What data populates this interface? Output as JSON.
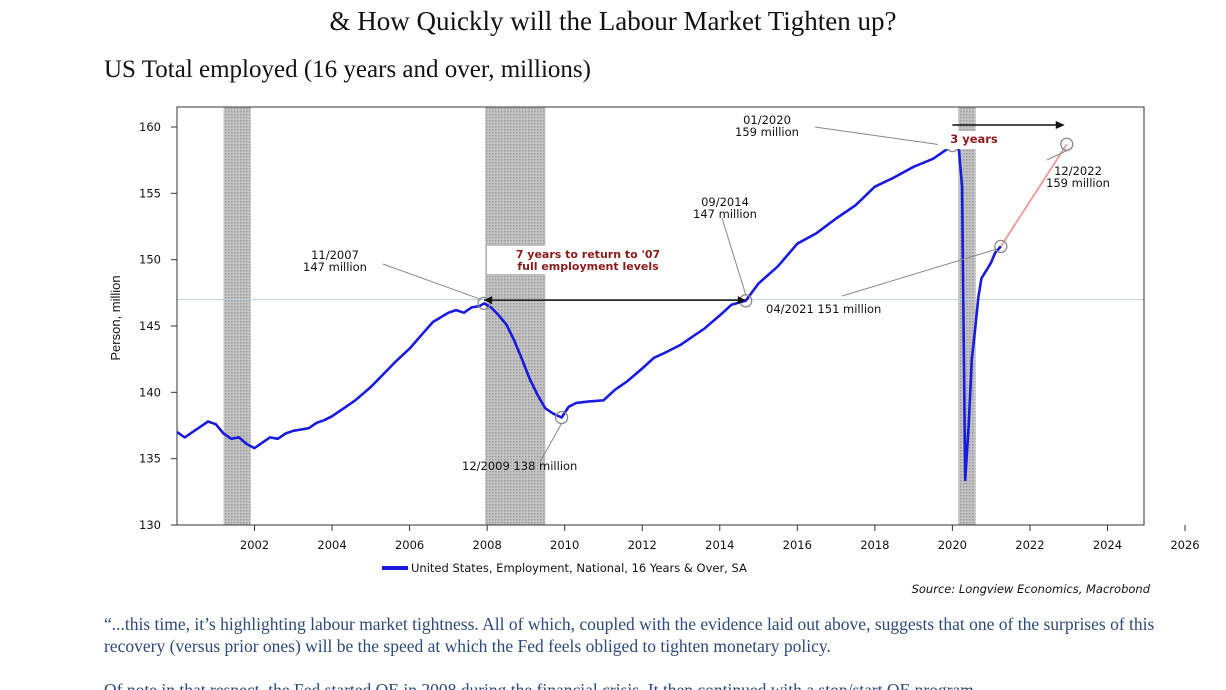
{
  "header": {
    "title_line": "& How Quickly will the Labour Market Tighten up?",
    "subtitle": "US Total employed (16 years and over, millions)"
  },
  "chart_data": {
    "type": "line",
    "title": "US Total employed (16 years and over, millions)",
    "ylabel": "Person, million",
    "xlim": [
      2000.0,
      2026.0
    ],
    "ylim": [
      130,
      160
    ],
    "yticks": [
      130,
      135,
      140,
      145,
      150,
      155,
      160
    ],
    "xticks": [
      2002,
      2004,
      2006,
      2008,
      2010,
      2012,
      2014,
      2016,
      2018,
      2020,
      2022,
      2024,
      2026
    ],
    "legend": "United States, Employment, National, 16 Years & Over, SA",
    "legend_position": "bottom",
    "source": "Source: Longview Economics, Macrobond",
    "line_color": "#1a1adf",
    "reference_line": 147,
    "recession_bands": [
      [
        2001.2,
        2001.9
      ],
      [
        2007.95,
        2009.5
      ],
      [
        2020.15,
        2020.6
      ]
    ],
    "series": [
      {
        "x": [
          2000.0,
          2000.2,
          2000.4,
          2000.6,
          2000.8,
          2001.0,
          2001.2,
          2001.4,
          2001.6,
          2001.8,
          2002.0,
          2002.2,
          2002.4,
          2002.6,
          2002.8,
          2003.0,
          2003.2,
          2003.4,
          2003.6,
          2003.8,
          2004.0,
          2004.3,
          2004.6,
          2005.0,
          2005.3,
          2005.6,
          2006.0,
          2006.3,
          2006.6,
          2007.0,
          2007.2,
          2007.4,
          2007.6,
          2007.8,
          2007.92,
          2008.1,
          2008.3,
          2008.5,
          2008.7,
          2008.9,
          2009.1,
          2009.3,
          2009.5,
          2009.7,
          2009.92,
          2010.1,
          2010.3,
          2010.6,
          2011.0,
          2011.3,
          2011.6,
          2012.0,
          2012.3,
          2012.6,
          2013.0,
          2013.3,
          2013.6,
          2014.0,
          2014.3,
          2014.67,
          2015.0,
          2015.5,
          2016.0,
          2016.5,
          2017.0,
          2017.5,
          2018.0,
          2018.5,
          2019.0,
          2019.5,
          2020.0,
          2020.1,
          2020.17,
          2020.25,
          2020.33,
          2020.42,
          2020.5,
          2020.58,
          2020.67,
          2020.75,
          2020.9,
          2021.0,
          2021.1,
          2021.25
        ],
        "y": [
          137.0,
          136.6,
          137.0,
          137.4,
          137.8,
          137.6,
          136.9,
          136.5,
          136.6,
          136.1,
          135.8,
          136.2,
          136.6,
          136.5,
          136.9,
          137.1,
          137.2,
          137.3,
          137.7,
          137.9,
          138.2,
          138.8,
          139.4,
          140.4,
          141.3,
          142.2,
          143.3,
          144.3,
          145.3,
          146.0,
          146.2,
          146.0,
          146.4,
          146.5,
          146.7,
          146.4,
          145.8,
          145.1,
          143.9,
          142.5,
          141.0,
          139.8,
          138.8,
          138.4,
          138.1,
          138.9,
          139.2,
          139.3,
          139.4,
          140.2,
          140.8,
          141.8,
          142.6,
          143.0,
          143.6,
          144.2,
          144.8,
          145.8,
          146.6,
          146.9,
          148.2,
          149.5,
          151.2,
          152.0,
          153.1,
          154.1,
          155.5,
          156.2,
          157.0,
          157.6,
          158.6,
          158.8,
          158.2,
          155.5,
          133.4,
          137.5,
          142.5,
          144.6,
          147.2,
          148.6,
          149.3,
          149.8,
          150.5,
          151.0
        ]
      }
    ],
    "projection": {
      "x": [
        2021.25,
        2022.95
      ],
      "y": [
        151.0,
        158.7
      ],
      "color": "#e8a0a0"
    },
    "annotations": [
      {
        "text_lines": [
          "11/2007",
          "147 million"
        ],
        "x": 2007.92,
        "y": 146.7
      },
      {
        "text_lines": [
          "12/2009 138 million"
        ],
        "x": 2009.92,
        "y": 138.1
      },
      {
        "text_lines": [
          "09/2014",
          "147 million"
        ],
        "x": 2014.67,
        "y": 146.9
      },
      {
        "text_lines": [
          "01/2020",
          "159 million"
        ],
        "x": 2020.0,
        "y": 158.6
      },
      {
        "text_lines": [
          "04/2021 151 million"
        ],
        "x": 2021.25,
        "y": 151.0
      },
      {
        "text_lines": [
          "12/2022",
          "159 million"
        ],
        "x": 2022.95,
        "y": 158.7
      },
      {
        "text_lines": [
          "7 years to return to '07",
          "full employment levels"
        ],
        "color": "#8b1a1a"
      },
      {
        "text_lines": [
          "3 years"
        ],
        "color": "#8b1a1a"
      }
    ]
  },
  "body_text": {
    "paragraph_1": "“...this time, it’s highlighting labour market tightness. All of which, coupled with the evidence laid out above, suggests that one of the surprises of this recovery (versus prior ones) will be the speed at which the Fed feels obliged to tighten monetary policy.",
    "paragraph_2": "Of note in that respect, the Fed started QE in 2008 during the financial crisis. It then continued with a stop/start QE program"
  }
}
